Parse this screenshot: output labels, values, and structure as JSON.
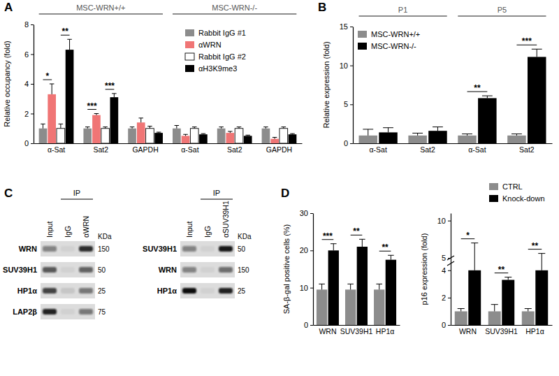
{
  "chart_data": [
    {
      "type": "bar",
      "title": "A",
      "groups": [
        "MSC-WRN+/+",
        "MSC-WRN-/-"
      ],
      "categories": [
        "α-Sat",
        "Sat2",
        "GAPDH",
        "α-Sat",
        "Sat2",
        "GAPDH"
      ],
      "ylabel": "Relative occupancy (fold)",
      "ylim": [
        0,
        8
      ],
      "yticks": [
        0,
        2,
        4,
        6,
        8
      ],
      "legend": "top-right",
      "series": [
        {
          "name": "Rabbit IgG #1",
          "color": "#8c8c8c",
          "values": [
            1,
            1,
            1,
            1,
            1,
            1
          ],
          "errors": [
            0.3,
            0.1,
            0.1,
            0.2,
            0.1,
            0.1
          ]
        },
        {
          "name": "αWRN",
          "color": "#f07575",
          "values": [
            3.3,
            1.9,
            1.4,
            0.5,
            0.7,
            0.3
          ],
          "errors": [
            0.7,
            0.1,
            0.3,
            0.1,
            0.1,
            0.1
          ]
        },
        {
          "name": "Rabbit IgG #2",
          "color": "#ffffff",
          "values": [
            1,
            1,
            1,
            1,
            1,
            1
          ],
          "errors": [
            0.3,
            0.1,
            0.15,
            0.1,
            0.1,
            0.1
          ]
        },
        {
          "name": "αH3K9me3",
          "color": "#000000",
          "values": [
            6.3,
            3.1,
            0.7,
            0.6,
            0.5,
            0.6
          ],
          "errors": [
            0.7,
            0.25,
            0.05,
            0.05,
            0.05,
            0.05
          ]
        }
      ],
      "annotations": [
        {
          "text": "*",
          "category": 0,
          "series": [
            0,
            1
          ]
        },
        {
          "text": "**",
          "category": 0,
          "series": [
            2,
            3
          ]
        },
        {
          "text": "***",
          "category": 1,
          "series": [
            0,
            1
          ]
        },
        {
          "text": "***",
          "category": 1,
          "series": [
            2,
            3
          ]
        }
      ]
    },
    {
      "type": "bar",
      "title": "B",
      "groups": [
        "P1",
        "P5"
      ],
      "categories": [
        "α-Sat",
        "Sat2",
        "α-Sat",
        "Sat2"
      ],
      "ylabel": "Relative expression (fold)",
      "ylim": [
        0,
        15
      ],
      "yticks": [
        0,
        5,
        10,
        15
      ],
      "legend": "top-left",
      "series": [
        {
          "name": "MSC-WRN+/+",
          "color": "#8c8c8c",
          "values": [
            1,
            1,
            1,
            1
          ],
          "errors": [
            0.8,
            0.3,
            0.2,
            0.2
          ]
        },
        {
          "name": "MSC-WRN-/-",
          "color": "#000000",
          "values": [
            1.4,
            1.6,
            5.8,
            11.1
          ],
          "errors": [
            0.6,
            0.5,
            0.3,
            1.0
          ]
        }
      ],
      "annotations": [
        {
          "text": "**",
          "category": 2,
          "series": [
            0,
            1
          ]
        },
        {
          "text": "***",
          "category": 3,
          "series": [
            0,
            1
          ]
        }
      ]
    },
    {
      "type": "bar",
      "title": "D",
      "categories": [
        "WRN",
        "SUV39H1",
        "HP1α"
      ],
      "ylabel": "SA-β-gal positive cells (%)",
      "ylim": [
        0,
        30
      ],
      "yticks": [
        0,
        10,
        20,
        30
      ],
      "series": [
        {
          "color": "#8c8c8c",
          "values": [
            9.5,
            9.5,
            9.5
          ],
          "errors": [
            1.5,
            1.5,
            1.5
          ]
        },
        {
          "color": "#000000",
          "values": [
            20,
            21,
            17.5
          ],
          "errors": [
            1.8,
            2,
            1.2
          ]
        }
      ],
      "annotations": [
        {
          "text": "***",
          "category": 0,
          "series": [
            0,
            1
          ]
        },
        {
          "text": "**",
          "category": 1,
          "series": [
            0,
            1
          ]
        },
        {
          "text": "**",
          "category": 2,
          "series": [
            0,
            1
          ]
        }
      ]
    },
    {
      "type": "bar",
      "categories": [
        "WRN",
        "SUV39H1",
        "HP1α"
      ],
      "ylabel": "p16 expression (fold)",
      "ylim": [
        0,
        11
      ],
      "ybreak": [
        4.5,
        5
      ],
      "yticks": [
        0,
        2,
        4,
        5,
        10
      ],
      "legend": "top-right",
      "series": [
        {
          "name": "CTRL",
          "color": "#8c8c8c",
          "values": [
            1,
            1,
            1
          ],
          "errors": [
            0.2,
            0.5,
            0.2
          ]
        },
        {
          "name": "Knock-down",
          "color": "#000000",
          "values": [
            4,
            3.3,
            4
          ],
          "errors": [
            3,
            0.2,
            1.6
          ]
        }
      ],
      "annotations": [
        {
          "text": "*",
          "category": 0,
          "series": [
            0,
            1
          ]
        },
        {
          "text": "**",
          "category": 1,
          "series": [
            0,
            1
          ]
        },
        {
          "text": "**",
          "category": 2,
          "series": [
            0,
            1
          ]
        }
      ]
    }
  ],
  "blots": {
    "title": "C",
    "ip_label": "IP",
    "kda_label": "KDa",
    "panels": [
      {
        "lanes": [
          "Input",
          "IgG",
          "αWRN"
        ],
        "rows": [
          {
            "protein": "WRN",
            "kda": 150
          },
          {
            "protein": "SUV39H1",
            "kda": 50
          },
          {
            "protein": "HP1α",
            "kda": 25
          },
          {
            "protein": "LAP2β",
            "kda": 75
          }
        ]
      },
      {
        "lanes": [
          "Input",
          "IgG",
          "αSUV39H1"
        ],
        "rows": [
          {
            "protein": "SUV39H1",
            "kda": 50
          },
          {
            "protein": "WRN",
            "kda": 150
          },
          {
            "protein": "HP1α",
            "kda": 25
          }
        ]
      }
    ]
  }
}
